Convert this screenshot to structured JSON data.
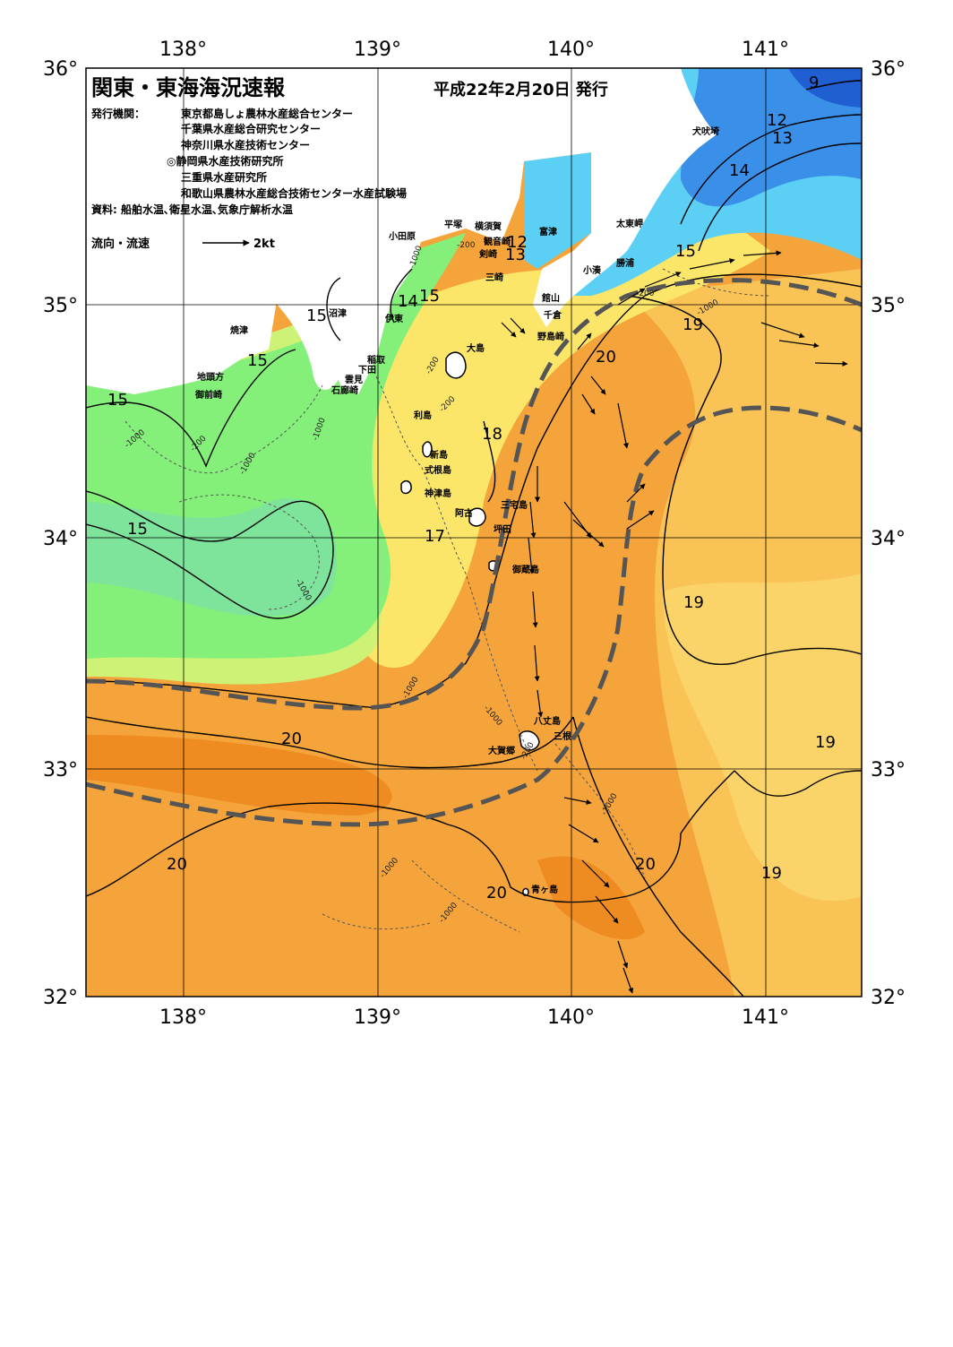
{
  "title": "関東・東海海況速報",
  "issue_date": "平成22年2月20日 発行",
  "publisher_label": "発行機関：",
  "publishers": [
    "東京都島しょ農林水産総合センター",
    "千葉県水産総合研究センター",
    "神奈川県水産技術センター",
    "◎静岡県水産技術研究所",
    "三重県水産研究所",
    "和歌山県農林水産総合技術センター水産試験場"
  ],
  "source": "資料: 船舶水温､衛星水温､気象庁解析水温",
  "legend": {
    "label": "流向・流速",
    "scale": "2kt"
  },
  "axes": {
    "lon_labels": [
      "138°",
      "139°",
      "140°",
      "141°"
    ],
    "lat_labels": [
      "36°",
      "35°",
      "34°",
      "33°",
      "32°"
    ]
  },
  "isotherm_labels": [
    "9",
    "12",
    "13",
    "14",
    "15",
    "15",
    "15",
    "15",
    "15",
    "14",
    "15",
    "12",
    "13",
    "19",
    "20",
    "18",
    "17",
    "20",
    "20",
    "20",
    "20",
    "19",
    "19",
    "19"
  ],
  "depth_labels": [
    "-200",
    "-200",
    "-200",
    "-1000",
    "-1000",
    "-1000",
    "-200",
    "-1000",
    "-200",
    "-1000",
    "-1000",
    "-1000",
    "-1000",
    "-200",
    "-1000",
    "-1000",
    "-1000"
  ],
  "place_names": [
    "犬吠埼",
    "太東岬",
    "勝浦",
    "小湊",
    "富津",
    "横須賀",
    "観音崎",
    "剣崎",
    "三崎",
    "平塚",
    "小田原",
    "館山",
    "千倉",
    "野島崎",
    "沼津",
    "伊東",
    "焼津",
    "稲取",
    "下田",
    "雲見",
    "石廊崎",
    "地頭方",
    "御前崎",
    "大島",
    "利島",
    "新島",
    "式根島",
    "神津島",
    "三宅島",
    "阿古",
    "坪田",
    "御蔵島",
    "八丈島",
    "三根",
    "大賀郷",
    "青ヶ島"
  ],
  "colors": {
    "cold_blue": "#3a8fe8",
    "cyan": "#5ccff4",
    "green": "#84f07a",
    "yellow_green": "#cdf276",
    "yellow": "#fbe66a",
    "orange_light": "#f9c356",
    "orange": "#f4a43b",
    "orange_dark": "#ee8c22",
    "kuroshio_axis": "#555555"
  }
}
